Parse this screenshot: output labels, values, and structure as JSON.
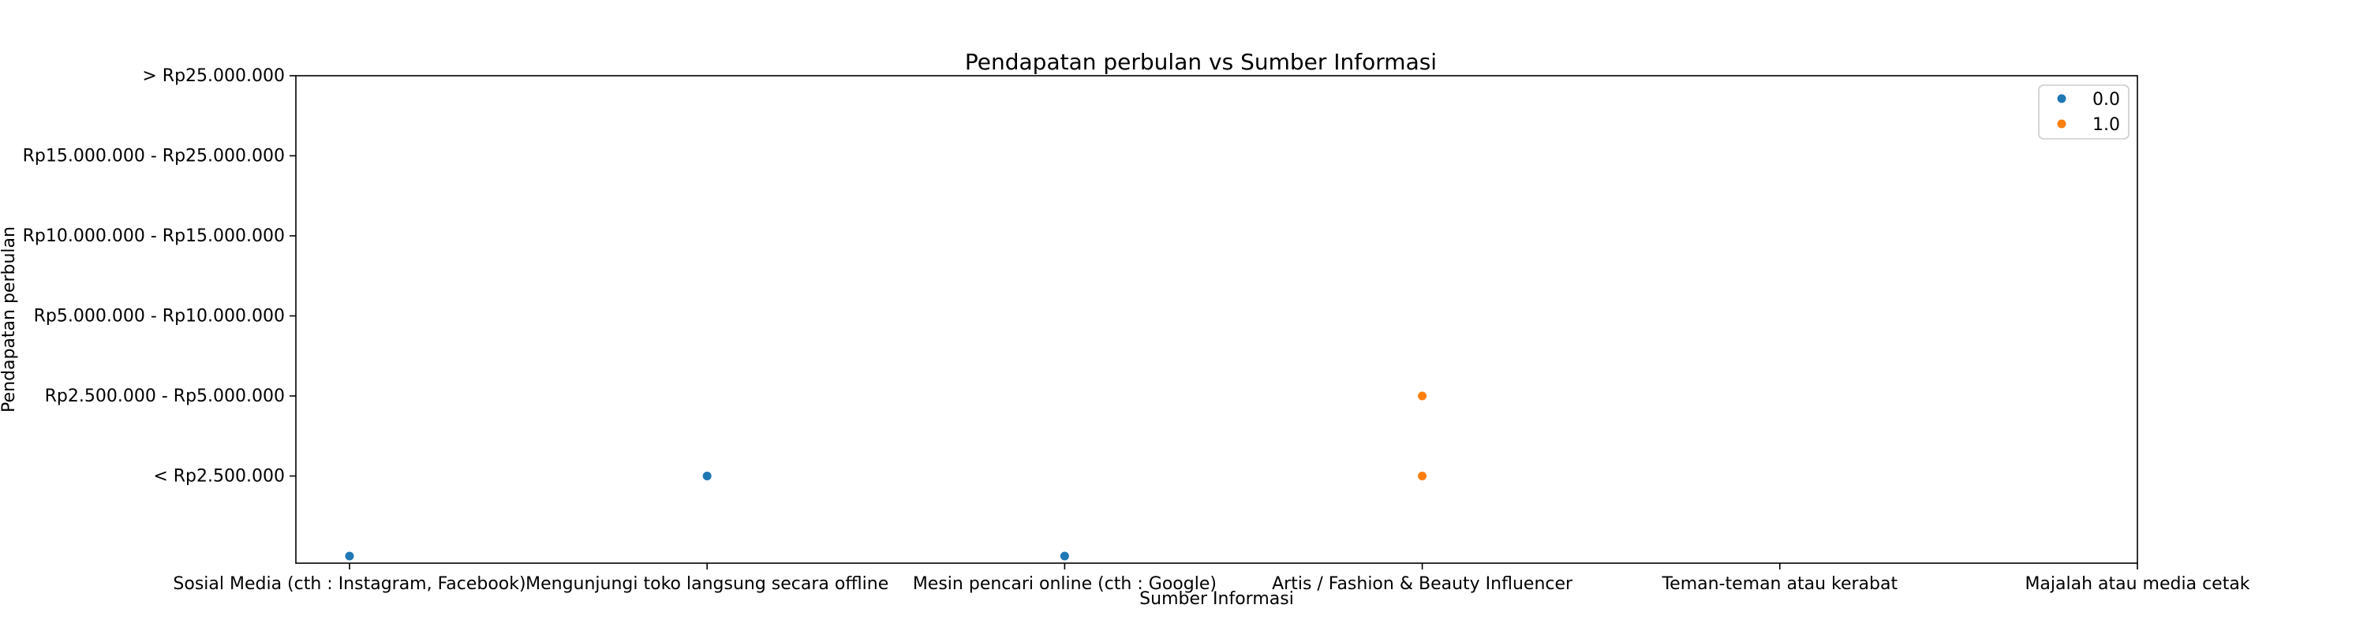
{
  "chart_data": {
    "type": "scatter",
    "title": "Pendapatan perbulan vs Sumber Informasi",
    "xlabel": "Sumber Informasi",
    "ylabel": "Pendapatan perbulan",
    "x_categories": [
      "Sosial Media (cth : Instagram, Facebook)",
      "Mengunjungi toko langsung secara offline",
      "Mesin pencari online (cth : Google)",
      "Artis / Fashion & Beauty Influencer",
      "Teman-teman atau kerabat",
      "Majalah atau media cetak"
    ],
    "y_categories": [
      "",
      "< Rp2.500.000",
      "Rp2.500.000 - Rp5.000.000",
      "Rp5.000.000 - Rp10.000.000",
      "Rp10.000.000 - Rp15.000.000",
      "Rp15.000.000 - Rp25.000.000",
      "> Rp25.000.000"
    ],
    "series": [
      {
        "name": "0.0",
        "color": "#1f77b4",
        "points": [
          {
            "x": "Sosial Media (cth : Instagram, Facebook)",
            "y": ""
          },
          {
            "x": "Mengunjungi toko langsung secara offline",
            "y": "< Rp2.500.000"
          },
          {
            "x": "Mesin pencari online (cth : Google)",
            "y": ""
          }
        ]
      },
      {
        "name": "1.0",
        "color": "#ff7f0e",
        "points": [
          {
            "x": "Artis / Fashion & Beauty Influencer",
            "y": "Rp2.500.000 - Rp5.000.000"
          },
          {
            "x": "Artis / Fashion & Beauty Influencer",
            "y": "< Rp2.500.000"
          }
        ]
      }
    ],
    "legend_position": "top-right",
    "grid": false
  }
}
